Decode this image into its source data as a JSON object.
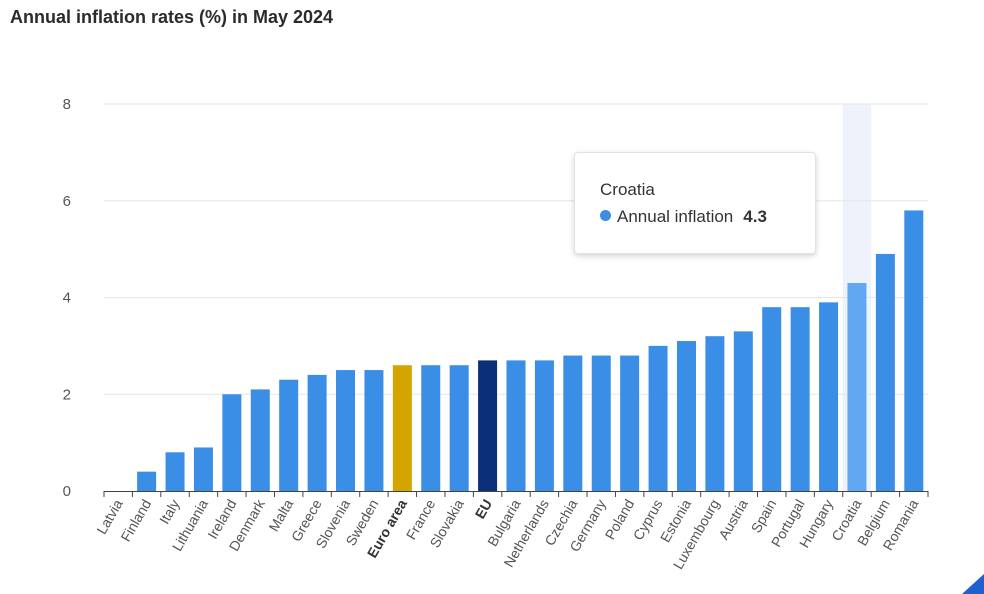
{
  "title": "Annual inflation rates (%) in May 2024",
  "chart_data": {
    "type": "bar",
    "title": "Annual inflation rates (%) in May 2024",
    "xlabel": "",
    "ylabel": "",
    "ylim": [
      0,
      8
    ],
    "yticks": [
      0,
      2,
      4,
      6,
      8
    ],
    "grid": true,
    "categories": [
      "Latvia",
      "Finland",
      "Italy",
      "Lithuania",
      "Ireland",
      "Denmark",
      "Malta",
      "Greece",
      "Slovenia",
      "Sweden",
      "Euro area",
      "France",
      "Slovakia",
      "EU",
      "Bulgaria",
      "Netherlands",
      "Czechia",
      "Germany",
      "Poland",
      "Cyprus",
      "Estonia",
      "Luxembourg",
      "Austria",
      "Spain",
      "Portugal",
      "Hungary",
      "Croatia",
      "Belgium",
      "Romania"
    ],
    "values": [
      0.0,
      0.4,
      0.8,
      0.9,
      2.0,
      2.1,
      2.3,
      2.4,
      2.5,
      2.5,
      2.6,
      2.6,
      2.6,
      2.7,
      2.7,
      2.7,
      2.8,
      2.8,
      2.8,
      3.0,
      3.1,
      3.2,
      3.3,
      3.8,
      3.8,
      3.9,
      4.3,
      4.9,
      5.8
    ],
    "bold_categories": [
      "Euro area",
      "EU"
    ],
    "colors": {
      "default": "#3a8ee6",
      "euro_area": "#d4a500",
      "eu": "#0c2f7a",
      "hovered": "#62a7f2",
      "hover_band": "#eef2fb",
      "grid": "#e6e6e6",
      "axis": "#444444"
    },
    "highlight": {
      "Euro area": "#d4a500",
      "EU": "#0c2f7a",
      "Croatia": "#62a7f2"
    },
    "hovered_category": "Croatia"
  },
  "tooltip": {
    "title": "Croatia",
    "series_name": "Annual inflation",
    "value": "4.3"
  }
}
